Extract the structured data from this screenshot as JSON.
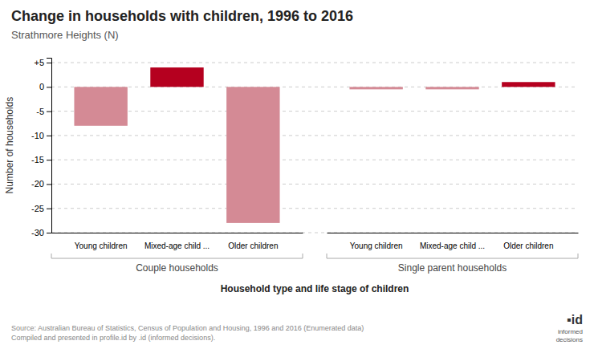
{
  "chart_data": {
    "type": "bar",
    "title": "Change in households with children, 1996 to 2016",
    "subtitle": "Strathmore Heights (N)",
    "categories": [
      "Young children",
      "Mixed-age child ...",
      "Older children",
      "Young children",
      "Mixed-age child ...",
      "Older children"
    ],
    "group_labels": [
      "Couple households",
      "Single parent households"
    ],
    "xlabel": "Household type and life stage of children",
    "ylabel": "Number of households",
    "values": [
      -8,
      4,
      -28,
      -0.5,
      -0.5,
      1
    ],
    "colors": [
      "#d48a95",
      "#b5001f",
      "#d48a95",
      "#d48a95",
      "#d48a95",
      "#b5001f"
    ],
    "ylim": [
      -30,
      6
    ],
    "yticks": [
      -30,
      -25,
      -20,
      -15,
      -10,
      -5,
      0,
      {
        "value": 5,
        "label": "+5"
      }
    ],
    "grid": true,
    "source": "Source: Australian Bureau of Statistics, Census of Population and Housing, 1996 and 2016 (Enumerated data)\nCompiled and presented in profile.id by .id (informed decisions).",
    "annotations": [
      "▪id",
      "informed\ndecisions"
    ]
  }
}
